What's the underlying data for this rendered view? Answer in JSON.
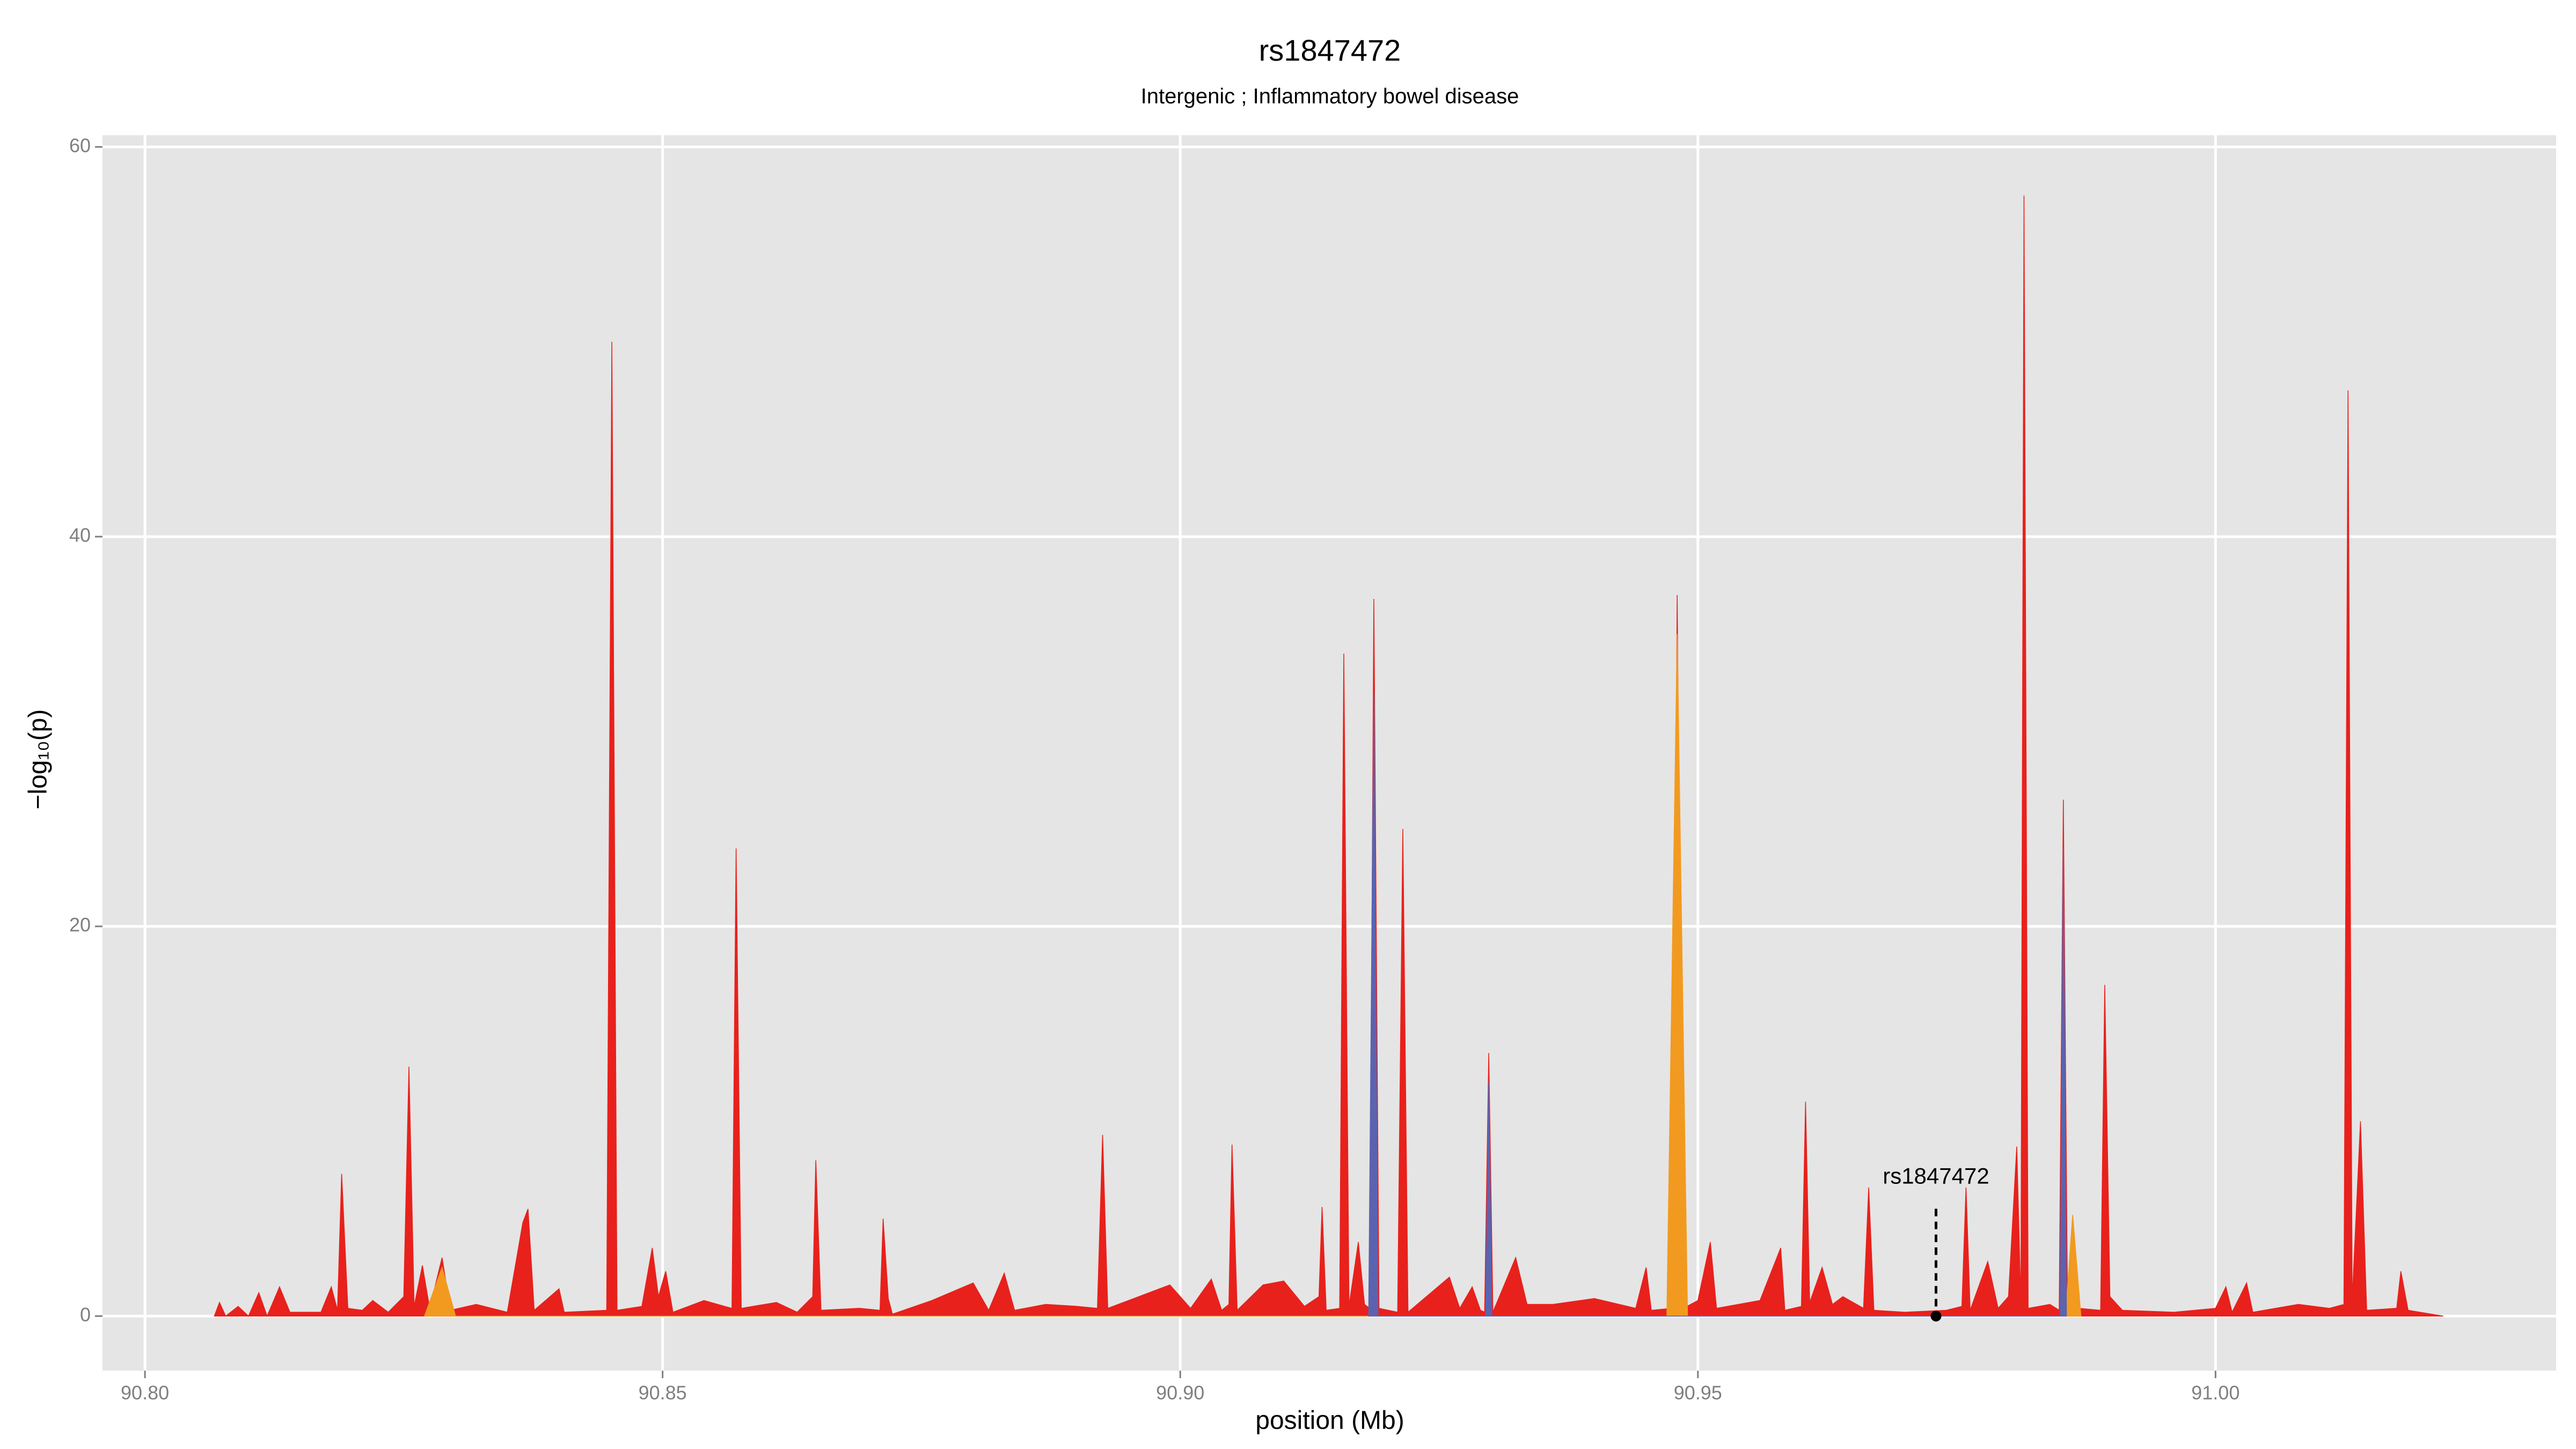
{
  "chart_data": {
    "type": "area",
    "title": "rs1847472",
    "subtitle": "Intergenic ; Inflammatory bowel disease",
    "x_label": "position (Mb)",
    "y_label": "−log₁₀(p)",
    "xlim": [
      90.7959,
      91.0329
    ],
    "ylim": [
      -2.8,
      60.6
    ],
    "xticks": [
      {
        "value": 90.8,
        "label": "90.80"
      },
      {
        "value": 90.85,
        "label": "90.85"
      },
      {
        "value": 90.9,
        "label": "90.90"
      },
      {
        "value": 90.95,
        "label": "90.95"
      },
      {
        "value": 91.0,
        "label": "91.00"
      }
    ],
    "yticks": [
      0,
      20,
      40,
      60
    ],
    "grid": true,
    "annotation": {
      "text": "rs1847472",
      "x": 90.973,
      "y": 0
    },
    "series": [
      {
        "color": "#e8211c",
        "x": [
          90.8067,
          90.8072,
          90.8078,
          90.809,
          90.81,
          90.811,
          90.8118,
          90.813,
          90.814,
          90.817,
          90.818,
          90.8186,
          90.819,
          90.8196,
          90.821,
          90.822,
          90.8235,
          90.825,
          90.8255,
          90.826,
          90.8268,
          90.8275,
          90.8287,
          90.8295,
          90.832,
          90.835,
          90.8365,
          90.837,
          90.8376,
          90.84,
          90.8405,
          90.8446,
          90.8451,
          90.8456,
          90.848,
          90.849,
          90.8496,
          90.8503,
          90.851,
          90.854,
          90.856,
          90.8567,
          90.8571,
          90.8576,
          90.861,
          90.863,
          90.8645,
          90.8648,
          90.8653,
          90.869,
          90.871,
          90.8713,
          90.8718,
          90.8722,
          90.876,
          90.88,
          90.8815,
          90.883,
          90.884,
          90.887,
          90.89,
          90.892,
          90.8925,
          90.893,
          90.896,
          90.899,
          90.901,
          90.903,
          90.904,
          90.9047,
          90.905,
          90.9055,
          90.908,
          90.91,
          90.912,
          90.9134,
          90.9137,
          90.9141,
          90.9154,
          90.9158,
          90.9163,
          90.9172,
          90.9178,
          90.9183,
          90.9187,
          90.9192,
          90.921,
          90.9215,
          90.922,
          90.926,
          90.927,
          90.9282,
          90.929,
          90.9294,
          90.9298,
          90.9302,
          90.9324,
          90.9335,
          90.936,
          90.94,
          90.944,
          90.945,
          90.9455,
          90.9475,
          90.948,
          90.9486,
          90.95,
          90.9512,
          90.9518,
          90.956,
          90.958,
          90.9584,
          90.96,
          90.9604,
          90.9608,
          90.962,
          90.963,
          90.964,
          90.966,
          90.9665,
          90.967,
          90.97,
          90.974,
          90.9755,
          90.9759,
          90.9763,
          90.978,
          90.979,
          90.98,
          90.9808,
          90.9812,
          90.9815,
          90.9819,
          90.984,
          90.9849,
          90.9853,
          90.9857,
          90.9862,
          90.9868,
          90.9889,
          90.9893,
          90.9898,
          90.991,
          90.996,
          91.0,
          91.001,
          91.0016,
          91.003,
          91.0036,
          91.008,
          91.011,
          91.0124,
          91.0128,
          91.0132,
          91.014,
          91.0146,
          91.0175,
          91.0179,
          91.0186,
          91.022
        ],
        "values": [
          0,
          0.7,
          0,
          0.5,
          0,
          1.2,
          0,
          1.5,
          0.2,
          0.2,
          1.5,
          0.3,
          7.3,
          0.4,
          0.3,
          0.8,
          0.2,
          1.0,
          12.8,
          0.5,
          2.6,
          0.4,
          3.0,
          0.3,
          0.6,
          0.2,
          4.8,
          5.5,
          0.3,
          1.4,
          0.2,
          0.3,
          50,
          0.3,
          0.5,
          3.5,
          1.0,
          2.3,
          0.2,
          0.8,
          0.5,
          0.4,
          24,
          0.4,
          0.7,
          0.2,
          1.0,
          8.0,
          0.3,
          0.4,
          0.3,
          5.0,
          0.9,
          0.1,
          0.8,
          1.7,
          0.3,
          2.2,
          0.3,
          0.6,
          0.5,
          0.4,
          9.3,
          0.4,
          1.0,
          1.6,
          0.4,
          1.9,
          0.3,
          0.6,
          8.8,
          0.3,
          1.6,
          1.8,
          0.5,
          1.0,
          5.6,
          0.3,
          0.4,
          34,
          0.5,
          3.8,
          0.6,
          0.4,
          36.8,
          0.4,
          0.2,
          25,
          0.2,
          2.0,
          0.4,
          1.5,
          0.3,
          0.2,
          13.5,
          0.2,
          3.0,
          0.6,
          0.6,
          0.9,
          0.4,
          2.5,
          0.3,
          0.4,
          37,
          0.4,
          0.8,
          3.8,
          0.4,
          0.8,
          3.5,
          0.3,
          0.5,
          11.0,
          0.7,
          2.5,
          0.6,
          1.0,
          0.4,
          6.6,
          0.3,
          0.2,
          0.3,
          0.5,
          6.6,
          0.3,
          2.8,
          0.4,
          1.0,
          8.7,
          0.5,
          57.5,
          0.4,
          0.6,
          0.3,
          26.5,
          0.6,
          5.0,
          0.4,
          0.3,
          17,
          1.0,
          0.3,
          0.2,
          0.4,
          1.5,
          0.2,
          1.7,
          0.2,
          0.6,
          0.4,
          0.6,
          47.5,
          0.8,
          10,
          0.3,
          0.4,
          2.3,
          0.3,
          0
        ]
      },
      {
        "color": "#f29a1f",
        "x": [
          90.827,
          90.8287,
          90.83,
          90.947,
          90.948,
          90.949,
          90.9855,
          90.9862,
          90.987
        ],
        "values": [
          0,
          2.5,
          0,
          0,
          35,
          0,
          0,
          5.2,
          0
        ]
      },
      {
        "color": "#5b63b0",
        "x": [
          90.9182,
          90.9187,
          90.9191,
          90.9295,
          90.9298,
          90.9301,
          90.985,
          90.9853,
          90.9856
        ],
        "values": [
          0,
          32,
          0,
          0,
          12,
          0,
          0,
          24,
          0
        ]
      }
    ]
  }
}
